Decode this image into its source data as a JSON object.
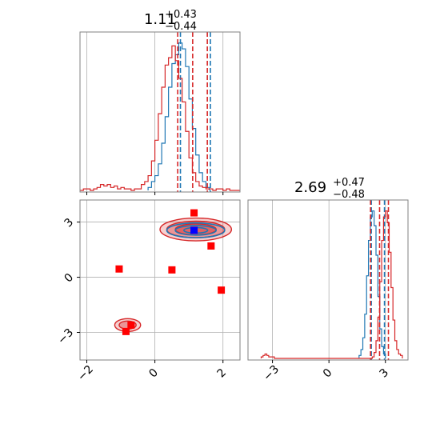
{
  "colors": {
    "blue": "#1f77b4",
    "red": "#d62728",
    "marker_red": "#ff0000",
    "marker_blue": "#0000ff",
    "grid": "#b0b0b0",
    "spine": "#808080"
  },
  "chart_data": [
    {
      "type": "histogram",
      "panel": "top-left",
      "parameter_index": 0,
      "title": {
        "value": "1.11",
        "upper": "+0.43",
        "lower": "−0.44"
      },
      "xlim": [
        -2.2,
        2.5
      ],
      "grid": true,
      "x_ticks": [
        -2,
        0,
        2
      ],
      "series": [
        {
          "color": "blue",
          "bins": {
            "start": -0.2,
            "width": 0.1,
            "counts": [
              2,
              6,
              10,
              18,
              32,
              50,
              70,
              86,
              92,
              100,
              96,
              84,
              62,
              42,
              24,
              12,
              6,
              2
            ]
          },
          "quantile_lines": [
            0.75,
            1.63
          ]
        },
        {
          "color": "red",
          "bins": {
            "start": -2.2,
            "width": 0.1,
            "counts": [
              0,
              1,
              1,
              0,
              1,
              2,
              4,
              3,
              4,
              2,
              3,
              1,
              2,
              1,
              1,
              0,
              1,
              1,
              4,
              6,
              10,
              20,
              34,
              52,
              70,
              85,
              90,
              98,
              88,
              76,
              60,
              40,
              22,
              12,
              6,
              3,
              2,
              1,
              1,
              0,
              1,
              1,
              0,
              1,
              0,
              0,
              0
            ]
          },
          "quantile_lines": [
            0.67,
            1.11,
            1.54
          ]
        }
      ]
    },
    {
      "type": "scatter",
      "panel": "bottom-left",
      "xlim": [
        -2.2,
        2.5
      ],
      "ylim": [
        -4.5,
        4.2
      ],
      "grid": true,
      "x_ticks": [
        -2,
        0,
        2
      ],
      "y_ticks": [
        -3,
        0,
        3
      ],
      "contours": [
        {
          "color": "red",
          "fill": true,
          "center": [
            1.2,
            2.6
          ],
          "levels": [
            [
              1.05,
              0.62
            ],
            [
              0.85,
              0.45
            ],
            [
              0.6,
              0.3
            ]
          ]
        },
        {
          "color": "red",
          "fill": true,
          "center": [
            -0.8,
            -2.6
          ],
          "levels": [
            [
              0.38,
              0.35
            ],
            [
              0.25,
              0.22
            ]
          ]
        },
        {
          "color": "blue",
          "fill": false,
          "center": [
            1.2,
            2.55
          ],
          "levels": [
            [
              0.85,
              0.4
            ],
            [
              0.6,
              0.26
            ],
            [
              0.35,
              0.15
            ]
          ]
        }
      ],
      "markers": {
        "red": [
          [
            -1.05,
            0.45
          ],
          [
            0.5,
            0.4
          ],
          [
            1.15,
            3.5
          ],
          [
            1.65,
            1.7
          ],
          [
            1.95,
            -0.7
          ],
          [
            -0.7,
            -2.6
          ],
          [
            -0.85,
            -2.95
          ]
        ],
        "blue": [
          [
            1.15,
            2.55
          ]
        ]
      }
    },
    {
      "type": "histogram",
      "panel": "bottom-right",
      "parameter_index": 1,
      "title": {
        "value": "2.69",
        "upper": "+0.47",
        "lower": "−0.48"
      },
      "xlim": [
        -4.3,
        4.2
      ],
      "grid": true,
      "x_ticks": [
        -3,
        0,
        3
      ],
      "series": [
        {
          "color": "blue",
          "bins": {
            "start": 1.6,
            "width": 0.1,
            "counts": [
              2,
              6,
              14,
              30,
              56,
              80,
              96,
              100,
              90,
              70,
              42,
              20,
              8,
              3
            ]
          },
          "quantile_lines": [
            2.25,
            2.95
          ]
        },
        {
          "color": "red",
          "bins": {
            "start": -3.6,
            "width": 0.1,
            "counts": [
              1,
              2,
              3,
              2,
              1,
              1,
              1,
              0,
              0,
              0,
              0,
              0,
              0,
              0,
              0,
              0,
              0,
              0,
              0,
              0,
              0,
              0,
              0,
              0,
              0,
              0,
              0,
              0,
              0,
              0,
              0,
              0,
              0,
              0,
              0,
              0,
              0,
              0,
              0,
              0,
              0,
              0,
              0,
              0,
              0,
              0,
              0,
              0,
              0,
              0,
              0,
              0,
              0,
              0,
              0,
              0,
              0,
              0,
              0,
              1,
              4,
              12,
              28,
              52,
              80,
              96,
              100,
              92,
              72,
              48,
              26,
              12,
              6,
              3,
              2
            ]
          },
          "quantile_lines": [
            2.21,
            2.69,
            3.16
          ]
        }
      ]
    }
  ]
}
